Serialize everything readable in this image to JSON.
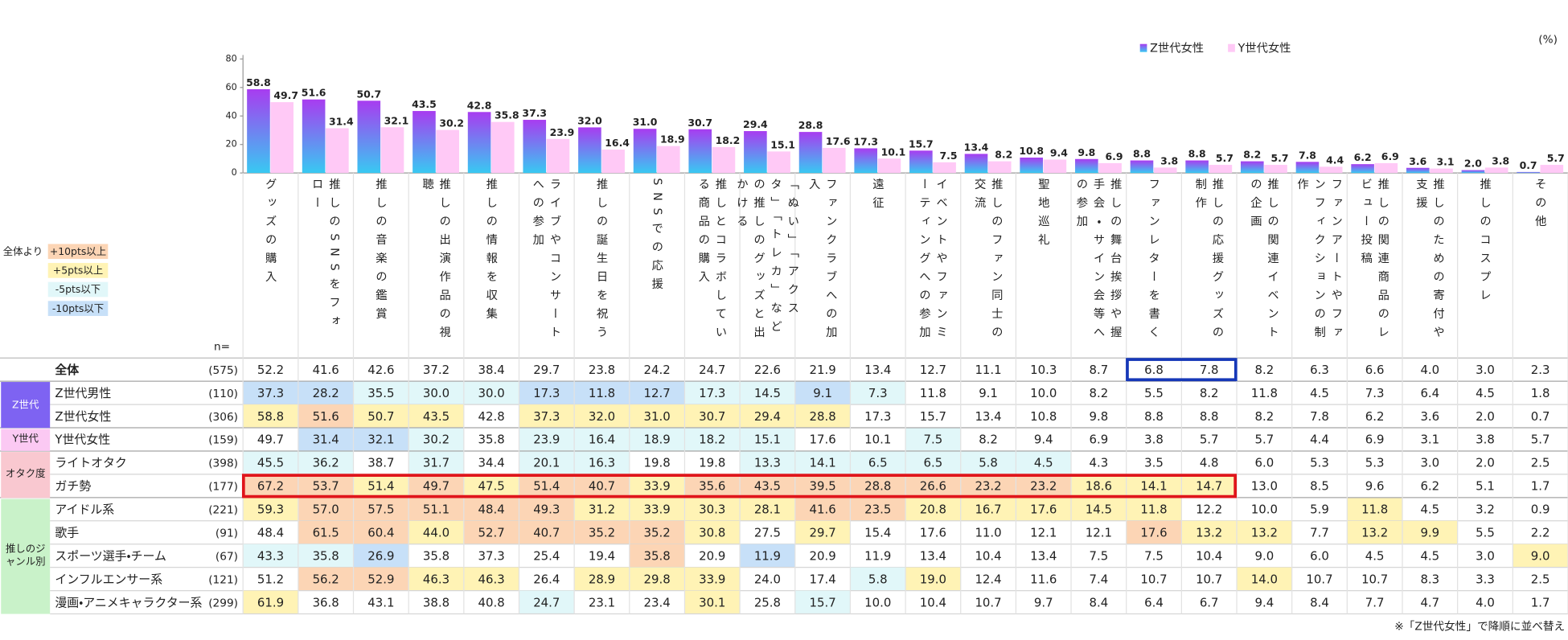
{
  "chart_data": {
    "type": "bar",
    "unit_label": "(%)",
    "categories": [
      "グッズの購入",
      "推しのSNSをフォロー",
      "推しの音楽の鑑賞",
      "推しの出演作品の視聴",
      "推しの情報を収集",
      "ライブやコンサートへの参加",
      "推しの誕生日を祝う",
      "SNSでの応援",
      "推しとコラボしている商品の購入",
      "「ぬい」「アクスタ」「トレカ」などの推しのグッズと出かける",
      "ファンクラブへの加入",
      "遠征",
      "イベントやファンミーティングへの参加",
      "推しのファン同士の交流",
      "聖地巡礼",
      "推しの舞台挨拶や握手会・サイン会等への参加",
      "ファンレターを書く",
      "推しの応援グッズの制作",
      "推しの関連イベントの企画",
      "ファンアートやファンフィクションの制作",
      "推しの関連商品のレビュー投稿",
      "推しのための寄付や支援",
      "推しのコスプレ",
      "その他"
    ],
    "series": [
      {
        "name": "Z世代女性",
        "gradient": [
          "#a83cf0",
          "#38c9f2"
        ],
        "values": [
          58.8,
          51.6,
          50.7,
          43.5,
          42.8,
          37.3,
          32.0,
          31.0,
          30.7,
          29.4,
          28.8,
          17.3,
          15.7,
          13.4,
          10.8,
          9.8,
          8.8,
          8.8,
          8.2,
          7.8,
          6.2,
          3.6,
          2.0,
          0.7
        ],
        "value_labels": [
          "58.8",
          "51.6",
          "50.7",
          "43.5",
          "42.8",
          "37.3",
          "32.0",
          "31.0",
          "30.7",
          "29.4",
          "28.8",
          "17.3",
          "15.7",
          "13.4",
          "10.8",
          "9.8",
          "8.8",
          "8.8",
          "8.2",
          "7.8",
          "6.2",
          "3.6",
          "2.0",
          "0.7"
        ]
      },
      {
        "name": "Y世代女性",
        "color": "#ffc9f6",
        "values": [
          49.7,
          31.4,
          32.1,
          30.2,
          35.8,
          23.9,
          16.4,
          18.9,
          18.2,
          15.1,
          17.6,
          10.1,
          7.5,
          8.2,
          9.4,
          6.9,
          3.8,
          5.7,
          5.7,
          4.4,
          6.9,
          3.1,
          3.8,
          5.7
        ],
        "value_labels": [
          "49.7",
          "31.4",
          "32.1",
          "30.2",
          "35.8",
          "23.9",
          "16.4",
          "18.9",
          "18.2",
          "15.1",
          "17.6",
          "10.1",
          "7.5",
          "8.2",
          "9.4",
          "6.9",
          "3.8",
          "5.7",
          "5.7",
          "4.4",
          "6.9",
          "3.1",
          "3.8",
          "5.7"
        ]
      }
    ],
    "ylim": [
      0,
      80
    ],
    "yticks": [
      0,
      20,
      40,
      60,
      80
    ],
    "legend": "top-right"
  },
  "table": {
    "n_header": "n=",
    "shading_title": "全体より",
    "shading": [
      {
        "label": "+10pts以上",
        "color": "#fcd5b5",
        "min": 10
      },
      {
        "label": "+5pts以上",
        "color": "#fff3b5",
        "min": 5
      },
      {
        "label": "-5pts以下",
        "color": "#e1f7f9",
        "max": -5
      },
      {
        "label": "-10pts以下",
        "color": "#c7e0f8",
        "max": -10
      }
    ],
    "total": {
      "label": "全体",
      "n": "(575)",
      "values": [
        "52.2",
        "41.6",
        "42.6",
        "37.2",
        "38.4",
        "29.7",
        "23.8",
        "24.2",
        "24.7",
        "22.6",
        "21.9",
        "13.4",
        "12.7",
        "11.1",
        "10.3",
        "8.7",
        "6.8",
        "7.8",
        "8.2",
        "6.3",
        "6.6",
        "4.0",
        "3.0",
        "2.3"
      ]
    },
    "groups": [
      {
        "label": "Z世代",
        "color": "#7e63f2",
        "text_color": "#ffffff",
        "rows": [
          {
            "label": "Z世代男性",
            "n": "(110)",
            "values": [
              "37.3",
              "28.2",
              "35.5",
              "30.0",
              "30.0",
              "17.3",
              "11.8",
              "12.7",
              "17.3",
              "14.5",
              "9.1",
              "7.3",
              "11.8",
              "9.1",
              "10.0",
              "8.2",
              "5.5",
              "8.2",
              "11.8",
              "4.5",
              "7.3",
              "6.4",
              "4.5",
              "1.8"
            ]
          },
          {
            "label": "Z世代女性",
            "n": "(306)",
            "values": [
              "58.8",
              "51.6",
              "50.7",
              "43.5",
              "42.8",
              "37.3",
              "32.0",
              "31.0",
              "30.7",
              "29.4",
              "28.8",
              "17.3",
              "15.7",
              "13.4",
              "10.8",
              "9.8",
              "8.8",
              "8.8",
              "8.2",
              "7.8",
              "6.2",
              "3.6",
              "2.0",
              "0.7"
            ]
          }
        ]
      },
      {
        "label": "Y世代",
        "color": "#fbc9f3",
        "text_color": "#222222",
        "rows": [
          {
            "label": "Y世代女性",
            "n": "(159)",
            "values": [
              "49.7",
              "31.4",
              "32.1",
              "30.2",
              "35.8",
              "23.9",
              "16.4",
              "18.9",
              "18.2",
              "15.1",
              "17.6",
              "10.1",
              "7.5",
              "8.2",
              "9.4",
              "6.9",
              "3.8",
              "5.7",
              "5.7",
              "4.4",
              "6.9",
              "3.1",
              "3.8",
              "5.7"
            ]
          }
        ]
      },
      {
        "label": "オタク度",
        "color": "#f9c8d0",
        "text_color": "#222222",
        "rows": [
          {
            "label": "ライトオタク",
            "n": "(398)",
            "values": [
              "45.5",
              "36.2",
              "38.7",
              "31.7",
              "34.4",
              "20.1",
              "16.3",
              "19.8",
              "19.8",
              "13.3",
              "14.1",
              "6.5",
              "6.5",
              "5.8",
              "4.5",
              "4.3",
              "3.5",
              "4.8",
              "6.0",
              "5.3",
              "5.3",
              "3.0",
              "2.0",
              "2.5"
            ]
          },
          {
            "label": "ガチ勢",
            "n": "(177)",
            "values": [
              "67.2",
              "53.7",
              "51.4",
              "49.7",
              "47.5",
              "51.4",
              "40.7",
              "33.9",
              "35.6",
              "43.5",
              "39.5",
              "28.8",
              "26.6",
              "23.2",
              "23.2",
              "18.6",
              "14.1",
              "14.7",
              "13.0",
              "8.5",
              "9.6",
              "6.2",
              "5.1",
              "1.7"
            ]
          }
        ]
      },
      {
        "label": "推しのジャンル別",
        "color": "#c9f2c9",
        "text_color": "#222222",
        "rows": [
          {
            "label": "アイドル系",
            "n": "(221)",
            "values": [
              "59.3",
              "57.0",
              "57.5",
              "51.1",
              "48.4",
              "49.3",
              "31.2",
              "33.9",
              "30.3",
              "28.1",
              "41.6",
              "23.5",
              "20.8",
              "16.7",
              "17.6",
              "14.5",
              "11.8",
              "12.2",
              "10.0",
              "5.9",
              "11.8",
              "4.5",
              "3.2",
              "0.9"
            ]
          },
          {
            "label": "歌手",
            "n": "(91)",
            "values": [
              "48.4",
              "61.5",
              "60.4",
              "44.0",
              "52.7",
              "40.7",
              "35.2",
              "35.2",
              "30.8",
              "27.5",
              "29.7",
              "15.4",
              "17.6",
              "11.0",
              "12.1",
              "12.1",
              "17.6",
              "13.2",
              "13.2",
              "7.7",
              "13.2",
              "9.9",
              "5.5",
              "2.2"
            ]
          },
          {
            "label": "スポーツ選手・チーム",
            "n": "(67)",
            "values": [
              "43.3",
              "35.8",
              "26.9",
              "35.8",
              "37.3",
              "25.4",
              "19.4",
              "35.8",
              "20.9",
              "11.9",
              "20.9",
              "11.9",
              "13.4",
              "10.4",
              "13.4",
              "7.5",
              "7.5",
              "10.4",
              "9.0",
              "6.0",
              "4.5",
              "4.5",
              "3.0",
              "9.0"
            ]
          },
          {
            "label": "インフルエンサー系",
            "n": "(121)",
            "values": [
              "51.2",
              "56.2",
              "52.9",
              "46.3",
              "46.3",
              "26.4",
              "28.9",
              "29.8",
              "33.9",
              "24.0",
              "17.4",
              "5.8",
              "19.0",
              "12.4",
              "11.6",
              "7.4",
              "10.7",
              "10.7",
              "14.0",
              "10.7",
              "10.7",
              "8.3",
              "3.3",
              "2.5"
            ]
          },
          {
            "label": "漫画・アニメキャラクター系",
            "n": "(299)",
            "values": [
              "61.9",
              "36.8",
              "43.1",
              "38.8",
              "40.8",
              "24.7",
              "23.1",
              "23.4",
              "30.1",
              "25.8",
              "15.7",
              "10.0",
              "10.4",
              "10.7",
              "9.7",
              "8.4",
              "6.4",
              "6.7",
              "9.4",
              "8.4",
              "7.7",
              "4.7",
              "4.0",
              "1.7"
            ]
          }
        ]
      }
    ],
    "note": "※「Z世代女性」で降順に並べ替え"
  }
}
